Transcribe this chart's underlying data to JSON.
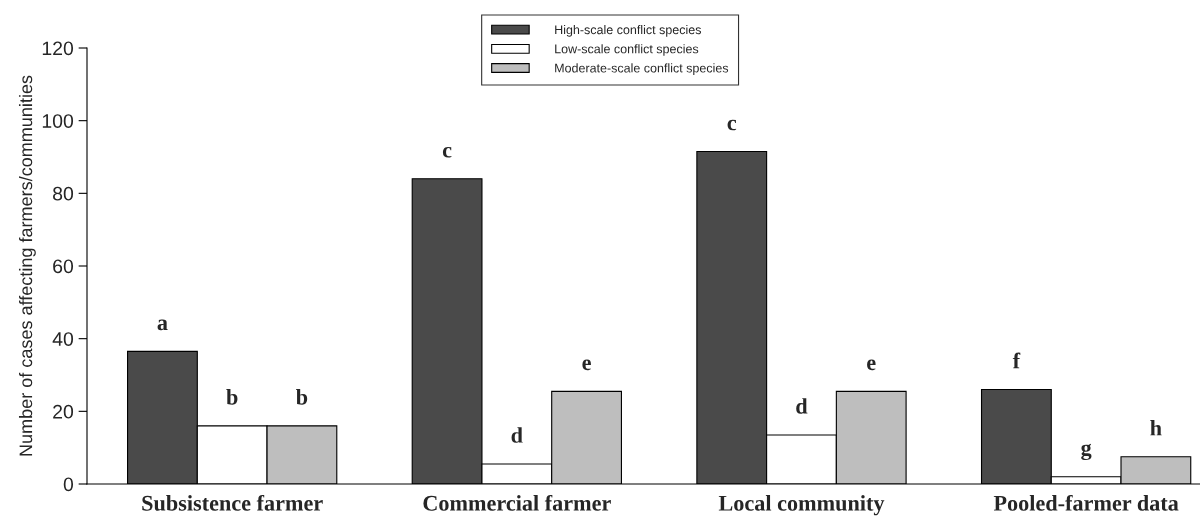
{
  "chart_data": {
    "type": "bar",
    "ylabel": "Number of cases affecting farmers/communities",
    "categories": [
      "Subsistence farmer",
      "Commercial farmer",
      "Local community",
      "Pooled-farmer data"
    ],
    "series": [
      {
        "name": "High-scale conflict species",
        "color": "#4a4a4a",
        "values": [
          36.5,
          84,
          91.5,
          26
        ],
        "value_labels": [
          "a",
          "c",
          "c",
          "f"
        ]
      },
      {
        "name": "Low-scale conflict species",
        "color": "#ffffff",
        "values": [
          16,
          5.5,
          13.5,
          2
        ],
        "value_labels": [
          "b",
          "d",
          "d",
          "g"
        ]
      },
      {
        "name": "Moderate-scale conflict species",
        "color": "#bebebe",
        "values": [
          16,
          25.5,
          25.5,
          7.5
        ],
        "value_labels": [
          "b",
          "e",
          "e",
          "h"
        ]
      }
    ],
    "ylim": [
      0,
      120
    ],
    "yticks": [
      0,
      20,
      40,
      60,
      80,
      100,
      120
    ],
    "grid": false,
    "legend": "top"
  }
}
